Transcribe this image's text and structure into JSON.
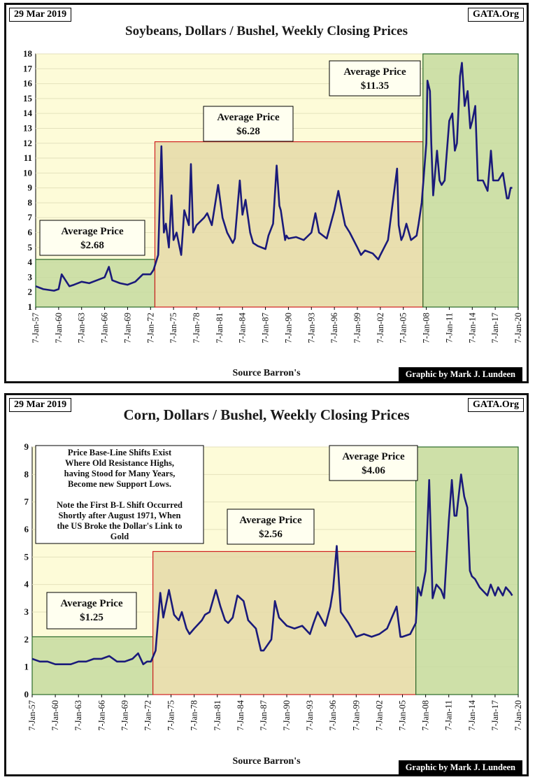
{
  "charts": [
    {
      "date": "29 Mar 2019",
      "site": "GATA.Org",
      "source": "Source Barron's",
      "credit": "Graphic by Mark J. Lundeen"
    },
    {
      "date": "29 Mar 2019",
      "site": "GATA.Org",
      "source": "Source Barron's",
      "credit": "Graphic by Mark J. Lundeen",
      "note": [
        "Price Base-Line Shifts Exist",
        "Where Old Resistance Highs,",
        "having Stood for Many Years,",
        "Become new Support Lows.",
        "",
        "Note the First B-L Shift Occurred",
        "Shortly after August 1971, When",
        "the US Broke the Dollar's Link to",
        "Gold"
      ]
    }
  ],
  "chart_data": [
    {
      "type": "line",
      "title": "Soybeans, Dollars / Bushel, Weekly Closing Prices",
      "xlabel": "",
      "ylabel": "",
      "ylim": [
        1,
        18
      ],
      "yticks": [
        1,
        2,
        3,
        4,
        5,
        6,
        7,
        8,
        9,
        10,
        11,
        12,
        13,
        14,
        15,
        16,
        17,
        18
      ],
      "xlim": [
        "1957-01-07",
        "2020-01-07"
      ],
      "xtick_labels": [
        "7-Jan-57",
        "7-Jan-60",
        "7-Jan-63",
        "7-Jan-66",
        "7-Jan-69",
        "7-Jan-72",
        "7-Jan-75",
        "7-Jan-78",
        "7-Jan-81",
        "7-Jan-84",
        "7-Jan-87",
        "7-Jan-90",
        "7-Jan-93",
        "7-Jan-96",
        "7-Jan-99",
        "7-Jan-02",
        "7-Jan-05",
        "7-Jan-08",
        "7-Jan-11",
        "7-Jan-14",
        "7-Jan-17",
        "7-Jan-20"
      ],
      "line_color": "#1a1a7a",
      "periods": [
        {
          "label": "Average Price",
          "value": "$2.68",
          "start": "1957-01-07",
          "end": "1972-08-01",
          "level": 4.2,
          "color": "#c5dba0"
        },
        {
          "label": "Average Price",
          "value": "$6.28",
          "start": "1972-08-01",
          "end": "2007-08-01",
          "level": 12.1,
          "color": "#e5d9a8"
        },
        {
          "label": "Average Price",
          "value": "$11.35",
          "start": "2007-08-01",
          "end": "2020-01-07",
          "level": 18,
          "color": "#c5dba0"
        }
      ],
      "series": [
        {
          "x": [
            "1957-01-07",
            "1958-01-07",
            "1959-06-01",
            "1960-01-07",
            "1960-06-01",
            "1961-03-01",
            "1961-06-01",
            "1962-01-07",
            "1963-01-07",
            "1964-01-07",
            "1965-01-07",
            "1966-01-07",
            "1966-08-01",
            "1967-01-07",
            "1968-01-07",
            "1969-01-07",
            "1970-01-07",
            "1971-01-07",
            "1972-01-07",
            "1972-06-01",
            "1973-01-07",
            "1973-06-07",
            "1973-10-01",
            "1974-01-07",
            "1974-06-01",
            "1974-10-01",
            "1975-01-07",
            "1975-06-01",
            "1976-01-07",
            "1976-06-01",
            "1977-01-07",
            "1977-04-15",
            "1977-08-01",
            "1978-01-07",
            "1979-01-07",
            "1979-06-01",
            "1980-01-07",
            "1980-11-01",
            "1981-06-01",
            "1982-01-07",
            "1982-10-01",
            "1983-01-07",
            "1983-09-01",
            "1984-01-07",
            "1984-06-01",
            "1985-01-07",
            "1985-06-01",
            "1986-01-07",
            "1987-01-07",
            "1987-06-01",
            "1988-01-07",
            "1988-06-24",
            "1988-11-01",
            "1989-01-07",
            "1989-08-01",
            "1989-10-01",
            "1990-01-07",
            "1991-01-07",
            "1992-01-07",
            "1993-01-07",
            "1993-07-15",
            "1994-01-07",
            "1995-01-07",
            "1996-01-07",
            "1996-07-15",
            "1997-01-07",
            "1997-06-01",
            "1998-01-07",
            "1999-01-07",
            "1999-07-01",
            "2000-01-07",
            "2001-01-07",
            "2001-10-01",
            "2002-01-07",
            "2003-01-07",
            "2004-03-15",
            "2004-06-01",
            "2004-10-01",
            "2005-01-07",
            "2005-06-01",
            "2006-01-07",
            "2006-10-01",
            "2007-01-07",
            "2007-06-01",
            "2008-01-07",
            "2008-03-01",
            "2008-07-01",
            "2008-09-01",
            "2008-12-01",
            "2009-06-01",
            "2009-10-01",
            "2010-01-07",
            "2010-06-01",
            "2011-01-07",
            "2011-06-01",
            "2011-10-01",
            "2012-01-07",
            "2012-06-01",
            "2012-09-01",
            "2013-01-07",
            "2013-06-01",
            "2013-10-01",
            "2014-01-07",
            "2014-06-01",
            "2014-10-01",
            "2015-06-01",
            "2016-01-07",
            "2016-06-15",
            "2016-10-01",
            "2017-06-01",
            "2018-01-07",
            "2018-07-15",
            "2018-10-01",
            "2019-01-07",
            "2019-03-29"
          ],
          "y": [
            2.4,
            2.2,
            2.1,
            2.2,
            3.2,
            2.6,
            2.4,
            2.5,
            2.7,
            2.6,
            2.8,
            3.0,
            3.7,
            2.8,
            2.6,
            2.5,
            2.7,
            3.2,
            3.2,
            3.5,
            4.5,
            11.8,
            6.0,
            6.6,
            5.0,
            8.5,
            5.5,
            6.0,
            4.5,
            7.5,
            6.5,
            10.6,
            6.0,
            6.5,
            7.0,
            7.3,
            6.5,
            9.2,
            7.0,
            6.0,
            5.3,
            5.6,
            9.5,
            7.2,
            8.2,
            6.0,
            5.3,
            5.1,
            4.9,
            5.8,
            6.6,
            10.5,
            7.8,
            7.5,
            5.5,
            5.8,
            5.6,
            5.7,
            5.5,
            6.0,
            7.3,
            6.0,
            5.6,
            7.5,
            8.8,
            7.5,
            6.5,
            6.0,
            5.0,
            4.5,
            4.8,
            4.6,
            4.2,
            4.5,
            5.5,
            10.3,
            6.5,
            5.5,
            5.8,
            6.6,
            5.5,
            5.8,
            6.6,
            8.0,
            12.0,
            16.2,
            15.5,
            12.0,
            8.5,
            11.5,
            9.5,
            9.2,
            9.5,
            13.5,
            14.0,
            11.5,
            12.0,
            16.5,
            17.4,
            14.5,
            15.5,
            13.0,
            13.5,
            14.5,
            9.5,
            9.5,
            8.8,
            11.5,
            9.5,
            9.5,
            10.0,
            8.3,
            8.3,
            9.0,
            9.0
          ]
        }
      ]
    },
    {
      "type": "line",
      "title": "Corn, Dollars / Bushel, Weekly Closing Prices",
      "xlabel": "",
      "ylabel": "",
      "ylim": [
        0,
        9
      ],
      "yticks": [
        0,
        1,
        2,
        3,
        4,
        5,
        6,
        7,
        8,
        9
      ],
      "xlim": [
        "1957-01-07",
        "2020-01-07"
      ],
      "xtick_labels": [
        "7-Jan-57",
        "7-Jan-60",
        "7-Jan-63",
        "7-Jan-66",
        "7-Jan-69",
        "7-Jan-72",
        "7-Jan-75",
        "7-Jan-78",
        "7-Jan-81",
        "7-Jan-84",
        "7-Jan-87",
        "7-Jan-90",
        "7-Jan-93",
        "7-Jan-96",
        "7-Jan-99",
        "7-Jan-02",
        "7-Jan-05",
        "7-Jan-08",
        "7-Jan-11",
        "7-Jan-14",
        "7-Jan-17",
        "7-Jan-20"
      ],
      "line_color": "#1a1a7a",
      "periods": [
        {
          "label": "Average Price",
          "value": "$1.25",
          "start": "1957-01-07",
          "end": "1972-09-01",
          "level": 2.1,
          "color": "#c5dba0"
        },
        {
          "label": "Average Price",
          "value": "$2.56",
          "start": "1972-09-01",
          "end": "2006-10-01",
          "level": 5.2,
          "color": "#e5d9a8"
        },
        {
          "label": "Average Price",
          "value": "$4.06",
          "start": "2006-10-01",
          "end": "2020-01-07",
          "level": 9,
          "color": "#c5dba0"
        }
      ],
      "series": [
        {
          "x": [
            "1957-01-07",
            "1958-01-07",
            "1959-01-07",
            "1960-01-07",
            "1961-01-07",
            "1962-01-07",
            "1963-01-07",
            "1964-01-07",
            "1965-01-07",
            "1966-01-07",
            "1967-01-07",
            "1968-01-07",
            "1969-01-07",
            "1970-01-07",
            "1970-10-01",
            "1971-06-01",
            "1971-12-01",
            "1972-06-01",
            "1973-01-07",
            "1973-08-15",
            "1974-01-07",
            "1974-10-01",
            "1975-06-01",
            "1976-01-07",
            "1976-06-01",
            "1977-01-07",
            "1977-06-01",
            "1978-01-07",
            "1979-01-07",
            "1979-06-01",
            "1980-01-07",
            "1980-11-01",
            "1981-06-01",
            "1982-01-07",
            "1982-06-01",
            "1983-01-07",
            "1983-08-15",
            "1984-06-01",
            "1985-01-07",
            "1986-01-07",
            "1986-09-01",
            "1987-01-07",
            "1988-01-07",
            "1988-06-24",
            "1989-01-07",
            "1990-01-07",
            "1991-01-07",
            "1992-01-07",
            "1993-01-07",
            "1993-07-01",
            "1994-01-07",
            "1995-01-07",
            "1995-09-01",
            "1996-01-07",
            "1996-07-01",
            "1997-01-07",
            "1998-01-07",
            "1999-01-07",
            "2000-01-07",
            "2001-01-07",
            "2002-01-07",
            "2003-01-07",
            "2004-04-01",
            "2004-10-01",
            "2005-01-07",
            "2006-01-07",
            "2006-10-01",
            "2007-01-07",
            "2007-06-01",
            "2008-01-07",
            "2008-06-25",
            "2008-12-01",
            "2009-06-01",
            "2010-01-07",
            "2010-06-01",
            "2011-01-07",
            "2011-06-01",
            "2011-10-01",
            "2012-01-07",
            "2012-08-10",
            "2013-01-07",
            "2013-06-01",
            "2013-10-01",
            "2014-01-07",
            "2014-06-01",
            "2015-01-07",
            "2016-01-07",
            "2016-06-15",
            "2017-01-07",
            "2017-06-01",
            "2018-01-07",
            "2018-06-01",
            "2019-01-07",
            "2019-03-29"
          ],
          "y": [
            1.3,
            1.2,
            1.2,
            1.1,
            1.1,
            1.1,
            1.2,
            1.2,
            1.3,
            1.3,
            1.4,
            1.2,
            1.2,
            1.3,
            1.5,
            1.1,
            1.2,
            1.2,
            1.6,
            3.7,
            2.8,
            3.8,
            2.9,
            2.7,
            3.0,
            2.4,
            2.2,
            2.4,
            2.7,
            2.9,
            3.0,
            3.8,
            3.2,
            2.7,
            2.6,
            2.8,
            3.6,
            3.4,
            2.7,
            2.4,
            1.6,
            1.6,
            2.0,
            3.4,
            2.8,
            2.5,
            2.4,
            2.5,
            2.2,
            2.6,
            3.0,
            2.5,
            3.2,
            3.8,
            5.4,
            3.0,
            2.6,
            2.1,
            2.2,
            2.1,
            2.2,
            2.4,
            3.2,
            2.1,
            2.1,
            2.2,
            2.6,
            3.9,
            3.6,
            4.5,
            7.8,
            3.5,
            4.0,
            3.8,
            3.5,
            6.3,
            7.8,
            6.5,
            6.5,
            8.0,
            7.2,
            6.8,
            4.5,
            4.3,
            4.2,
            3.9,
            3.6,
            4.0,
            3.6,
            3.9,
            3.6,
            3.9,
            3.7,
            3.6
          ]
        }
      ]
    }
  ]
}
